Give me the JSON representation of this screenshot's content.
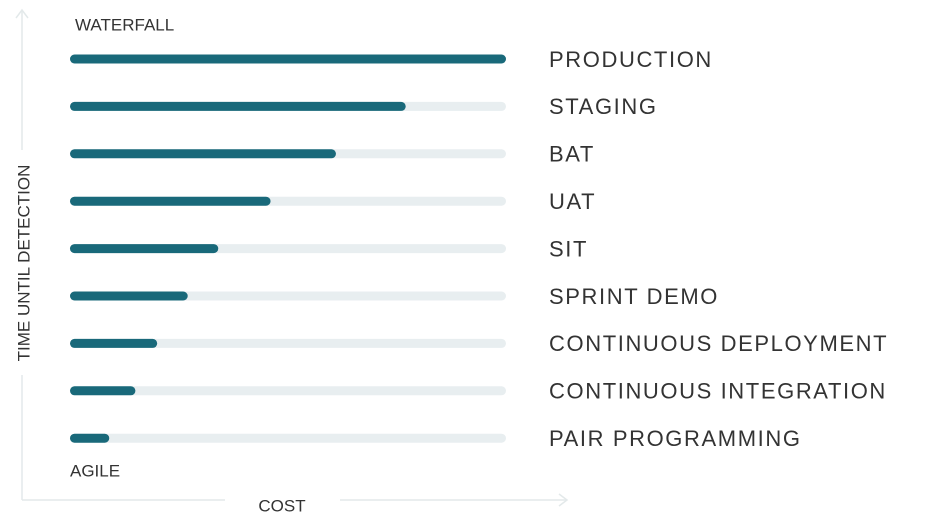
{
  "chart_data": {
    "type": "bar",
    "orientation": "horizontal",
    "top_label": "WATERFALL",
    "bottom_label": "AGILE",
    "y_axis_label": "TIME UNTIL DETECTION",
    "x_axis_label": "COST",
    "categories": [
      "PRODUCTION",
      "STAGING",
      "BAT",
      "UAT",
      "SIT",
      "SPRINT DEMO",
      "CONTINUOUS DEPLOYMENT",
      "CONTINUOUS INTEGRATION",
      "PAIR PROGRAMMING"
    ],
    "values": [
      100,
      77,
      61,
      46,
      34,
      27,
      20,
      15,
      9
    ],
    "xlim": [
      0,
      100
    ],
    "color": "#19697a",
    "track_color": "#e8eef0",
    "axis_color": "#e3e9ea"
  }
}
